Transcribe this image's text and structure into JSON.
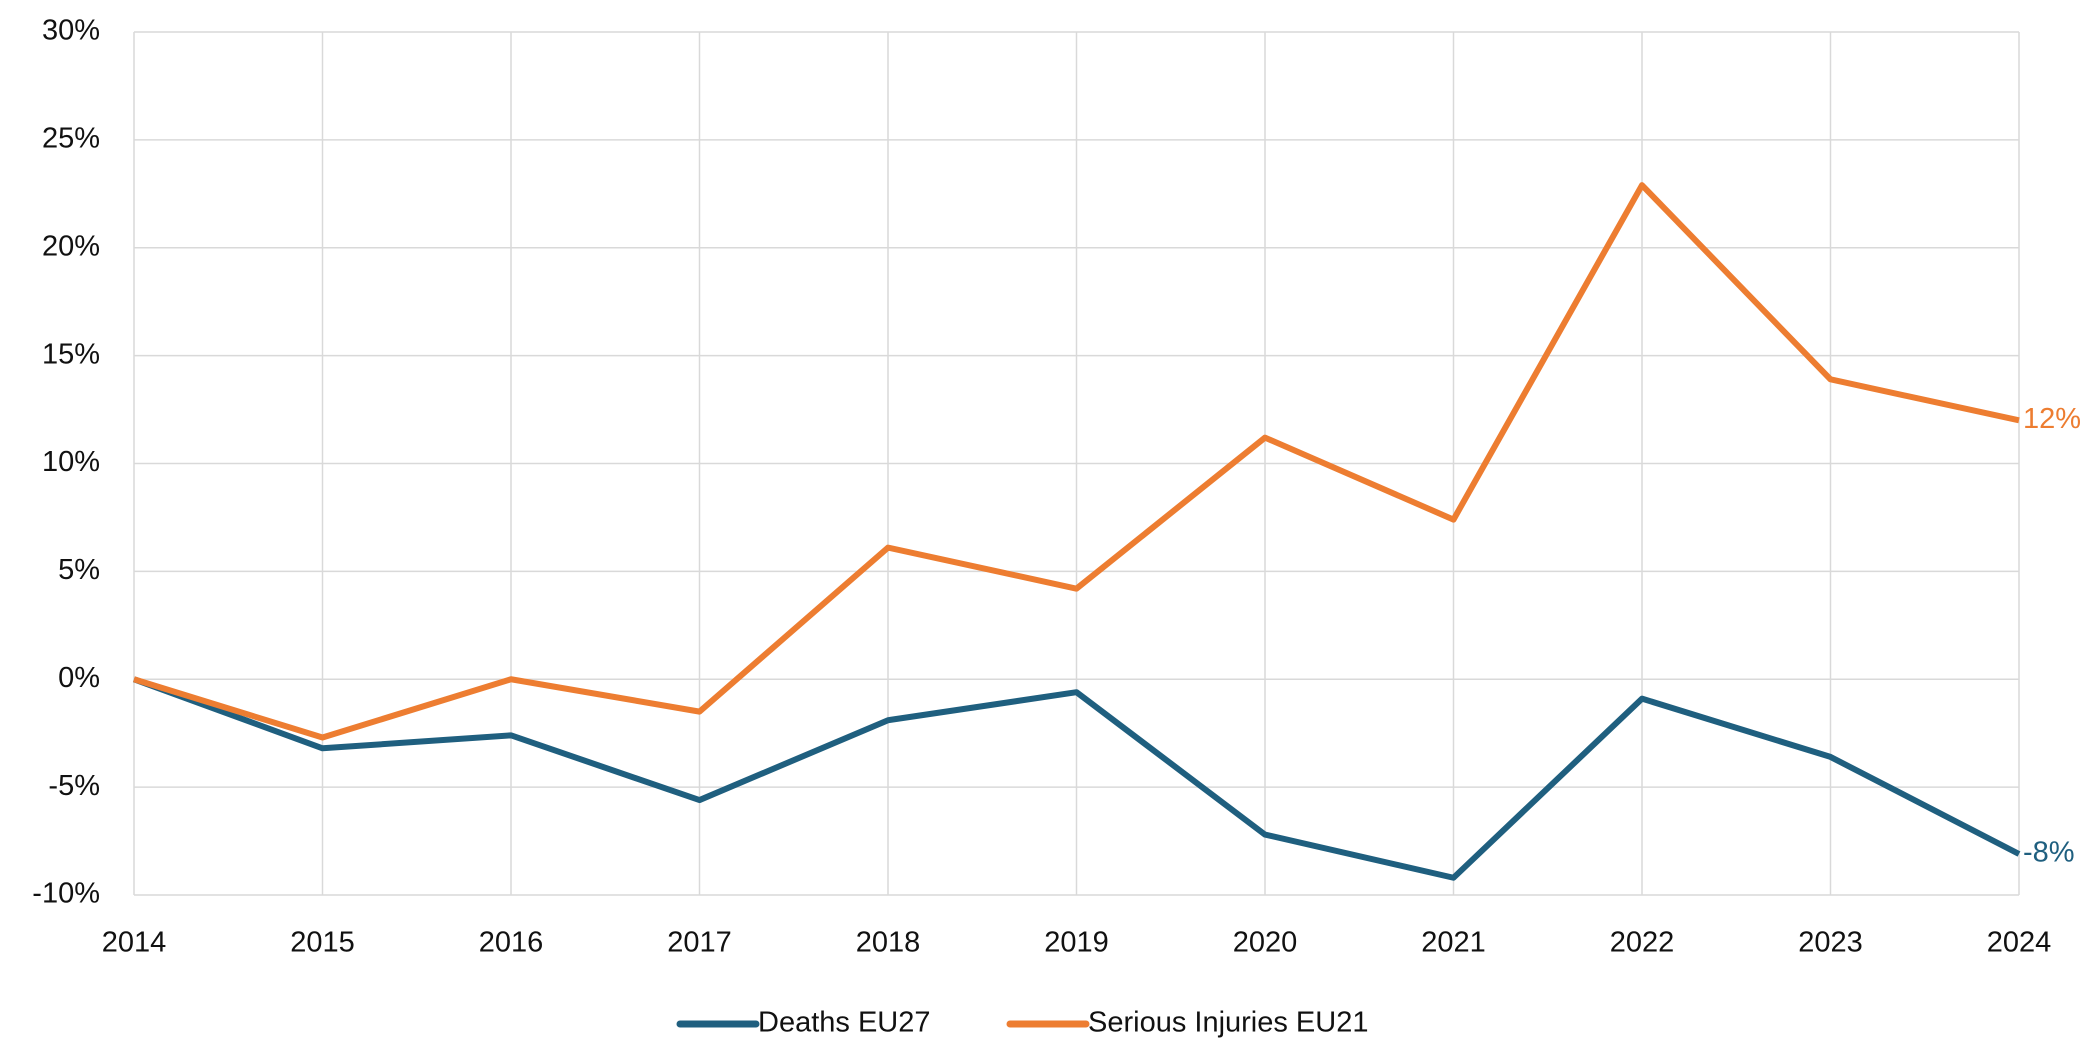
{
  "chart_data": {
    "type": "line",
    "x": [
      2014,
      2015,
      2016,
      2017,
      2018,
      2019,
      2020,
      2021,
      2022,
      2023,
      2024
    ],
    "series": [
      {
        "name": "Deaths EU27",
        "color": "#1f5f7f",
        "values": [
          0,
          -3.2,
          -2.6,
          -5.6,
          -1.9,
          -0.6,
          -7.2,
          -9.2,
          -0.9,
          -3.6,
          -8.1
        ],
        "value_labels": [
          null,
          null,
          null,
          null,
          null,
          null,
          null,
          null,
          null,
          null,
          "-8%"
        ]
      },
      {
        "name": "Serious Injuries EU21",
        "color": "#ed7d31",
        "values": [
          0,
          -2.7,
          0,
          -1.5,
          6.1,
          4.2,
          11.2,
          7.4,
          22.9,
          13.9,
          12
        ],
        "value_labels": [
          null,
          null,
          null,
          null,
          null,
          null,
          null,
          null,
          null,
          null,
          "12%"
        ]
      }
    ],
    "xlim": [
      2014,
      2024
    ],
    "xticks": [
      2014,
      2015,
      2016,
      2017,
      2018,
      2019,
      2020,
      2021,
      2022,
      2023,
      2024
    ],
    "ylim": [
      -10,
      30
    ],
    "yticks": [
      {
        "value": -10,
        "label": "-10%"
      },
      {
        "value": -5,
        "label": "-5%"
      },
      {
        "value": 0,
        "label": "0%"
      },
      {
        "value": 5,
        "label": "5%"
      },
      {
        "value": 10,
        "label": "10%"
      },
      {
        "value": 15,
        "label": "15%"
      },
      {
        "value": 20,
        "label": "20%"
      },
      {
        "value": 25,
        "label": "25%"
      },
      {
        "value": 30,
        "label": "30%"
      }
    ],
    "grid": true,
    "legend": "bottom"
  }
}
